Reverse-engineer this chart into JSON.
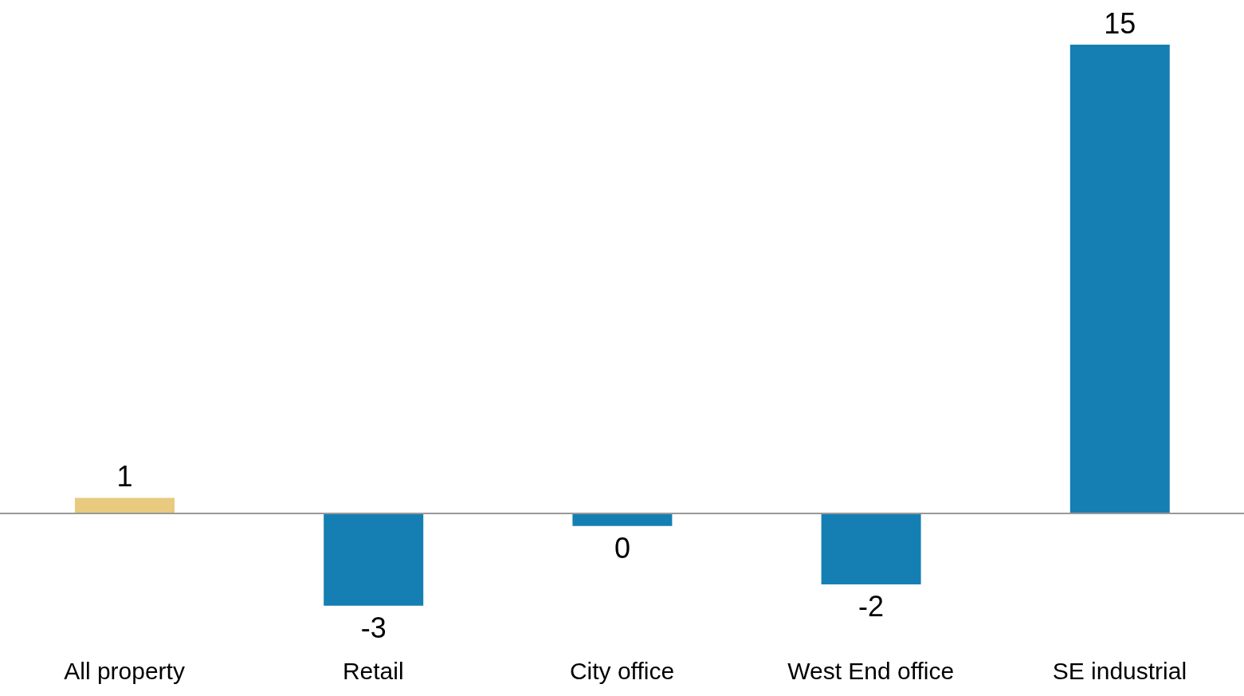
{
  "chart_data": {
    "type": "bar",
    "categories": [
      "All property",
      "Retail",
      "City office",
      "West End office",
      "SE industrial"
    ],
    "values": [
      0.5,
      -2.95,
      -0.4,
      -2.27,
      15
    ],
    "colors": [
      "#e8cb7f",
      "#157fb3",
      "#157fb3",
      "#157fb3",
      "#157fb3"
    ],
    "value_labels": [
      "1",
      "-3",
      "0",
      "-2",
      "15"
    ],
    "grid": false,
    "legend": false
  }
}
